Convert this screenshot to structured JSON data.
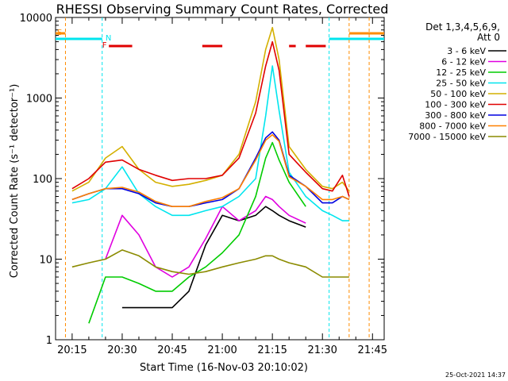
{
  "chart_data": {
    "type": "line",
    "title": "RHESSI Observing Summary Count Rates, Corrected",
    "xlabel": "Start Time (16-Nov-03 20:10:02)",
    "ylabel": "Corrected Count Rate (s⁻¹ detector⁻¹)",
    "y_scale": "log",
    "ylim": [
      1,
      10000
    ],
    "xlim": [
      "20:10:02",
      "21:48:30"
    ],
    "x_ticks": [
      "20:15",
      "20:30",
      "20:45",
      "21:00",
      "21:15",
      "21:30",
      "21:45"
    ],
    "y_ticks": [
      "1",
      "10",
      "100",
      "1000",
      "10000"
    ],
    "legend_header": [
      "Det 1,3,4,5,6,9,",
      "Att 0"
    ],
    "legend_position": "right",
    "timestamp": "25-Oct-2021 14:37",
    "flags": [
      {
        "label": "S",
        "color": "#ff8c00"
      },
      {
        "label": "N",
        "color": "#00e5ee"
      },
      {
        "label": "F",
        "color": "#e00000"
      }
    ],
    "x": [
      "20:13",
      "20:15",
      "20:20",
      "20:25",
      "20:30",
      "20:35",
      "20:40",
      "20:45",
      "20:50",
      "20:55",
      "21:00",
      "21:05",
      "21:10",
      "21:13",
      "21:15",
      "21:17",
      "21:20",
      "21:25",
      "21:30",
      "21:33",
      "21:36",
      "21:38",
      "21:40"
    ],
    "series": [
      {
        "name": "3 - 6 keV",
        "color": "#000000",
        "values": [
          null,
          null,
          null,
          null,
          2.5,
          2.5,
          2.5,
          2.5,
          4,
          15,
          35,
          30,
          35,
          45,
          40,
          35,
          30,
          25,
          null,
          null,
          null,
          null,
          null
        ]
      },
      {
        "name": "6 - 12 keV",
        "color": "#e000e0",
        "values": [
          null,
          null,
          null,
          10,
          35,
          20,
          8,
          6,
          8,
          18,
          45,
          30,
          40,
          60,
          55,
          45,
          35,
          28,
          null,
          null,
          null,
          null,
          null
        ]
      },
      {
        "name": "12 - 25 keV",
        "color": "#00cc00",
        "values": [
          null,
          null,
          1.6,
          6,
          6,
          5,
          4,
          4,
          6,
          8,
          12,
          20,
          60,
          180,
          280,
          170,
          90,
          45,
          null,
          null,
          null,
          null,
          null
        ]
      },
      {
        "name": "25 - 50 keV",
        "color": "#00e5ee",
        "values": [
          null,
          50,
          55,
          75,
          140,
          65,
          45,
          35,
          35,
          40,
          45,
          60,
          100,
          600,
          2500,
          700,
          120,
          60,
          40,
          35,
          30,
          30,
          null
        ]
      },
      {
        "name": "50 - 100 keV",
        "color": "#d4b000",
        "values": [
          null,
          70,
          90,
          180,
          250,
          130,
          90,
          80,
          85,
          95,
          110,
          200,
          900,
          4000,
          7500,
          3000,
          250,
          130,
          80,
          75,
          90,
          70,
          null
        ]
      },
      {
        "name": "100 - 300 keV",
        "color": "#e00000",
        "values": [
          null,
          75,
          100,
          160,
          170,
          130,
          110,
          95,
          100,
          100,
          110,
          180,
          650,
          2500,
          5000,
          2200,
          200,
          120,
          75,
          70,
          110,
          60,
          null
        ]
      },
      {
        "name": "300 - 800 keV",
        "color": "#0000e0",
        "values": [
          null,
          55,
          65,
          75,
          75,
          65,
          50,
          45,
          45,
          50,
          55,
          75,
          180,
          320,
          380,
          300,
          110,
          80,
          50,
          50,
          60,
          55,
          null
        ]
      },
      {
        "name": "800 - 7000 keV",
        "color": "#ff8000",
        "values": [
          null,
          55,
          65,
          75,
          78,
          68,
          52,
          45,
          45,
          52,
          58,
          75,
          170,
          300,
          350,
          290,
          105,
          80,
          55,
          55,
          60,
          55,
          null
        ]
      },
      {
        "name": "7000 - 15000 keV",
        "color": "#8b8b00",
        "values": [
          null,
          8,
          9,
          10,
          13,
          11,
          8,
          7,
          6.5,
          7,
          8,
          9,
          10,
          11,
          11,
          10,
          9,
          8,
          6,
          6,
          6,
          6,
          null
        ]
      }
    ]
  }
}
